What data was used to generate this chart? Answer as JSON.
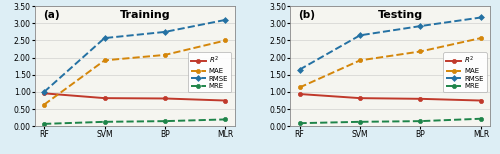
{
  "categories": [
    "RF",
    "SVM",
    "BP",
    "MLR"
  ],
  "training": {
    "R2": [
      0.96,
      0.82,
      0.81,
      0.75
    ],
    "MAE": [
      0.63,
      1.92,
      2.08,
      2.5
    ],
    "RMSE": [
      1.0,
      2.57,
      2.75,
      3.1
    ],
    "MRE": [
      0.07,
      0.13,
      0.15,
      0.2
    ]
  },
  "testing": {
    "R2": [
      0.94,
      0.82,
      0.8,
      0.75
    ],
    "MAE": [
      1.13,
      1.92,
      2.18,
      2.57
    ],
    "RMSE": [
      1.65,
      2.65,
      2.92,
      3.17
    ],
    "MRE": [
      0.09,
      0.13,
      0.15,
      0.22
    ]
  },
  "colors": {
    "R2": "#c0392b",
    "MAE": "#d4860a",
    "RMSE": "#2471a3",
    "MRE": "#1e8449"
  },
  "ylim": [
    0.0,
    3.5
  ],
  "yticks": [
    0.0,
    0.5,
    1.0,
    1.5,
    2.0,
    2.5,
    3.0,
    3.5
  ],
  "label_a": "(a)",
  "label_b": "(b)",
  "title_a": "Training",
  "title_b": "Testing",
  "axes_bg": "#f5f5f0",
  "fig_bg": "#ddeef5"
}
